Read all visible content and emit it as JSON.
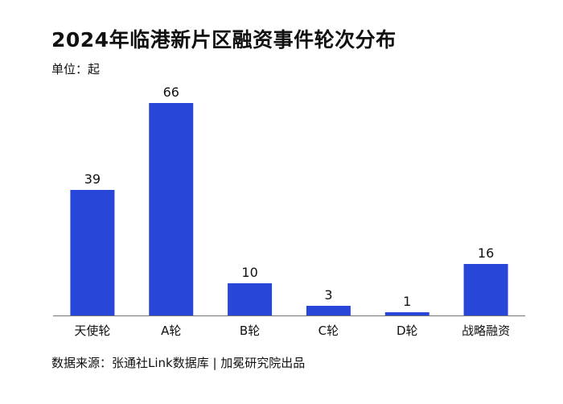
{
  "chart_data": {
    "type": "bar",
    "title": "2024年临港新片区融资事件轮次分布",
    "unit_label": "单位：起",
    "categories": [
      "天使轮",
      "A轮",
      "B轮",
      "C轮",
      "D轮",
      "战略融资"
    ],
    "values": [
      39,
      66,
      10,
      3,
      1,
      16
    ],
    "ylim": [
      0,
      66
    ],
    "grid": false,
    "bar_color": "#2846d8",
    "source": "数据来源：张通社Link数据库 | 加冕研究院出品"
  }
}
